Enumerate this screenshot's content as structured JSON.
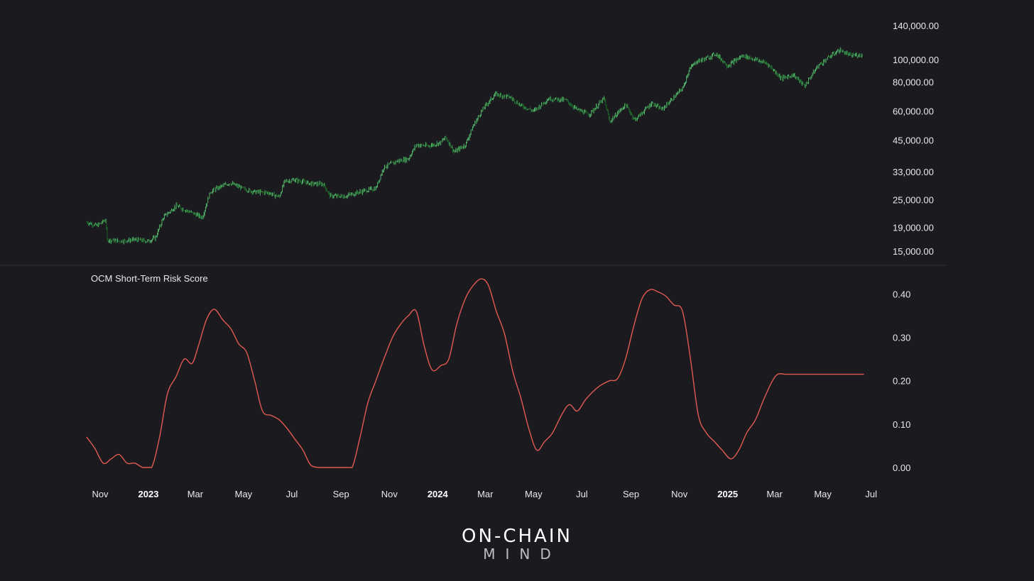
{
  "chart_data": [
    {
      "type": "candlestick",
      "scale": "log",
      "y_tick_labels": [
        "140,000.00",
        "100,000.00",
        "80,000.00",
        "60,000.00",
        "45,000.00",
        "33,000.00",
        "25,000.00",
        "19,000.00",
        "15,000.00"
      ],
      "y_ticks": [
        140000,
        100000,
        80000,
        60000,
        45000,
        33000,
        25000,
        19000,
        15000
      ],
      "ylim": [
        14000,
        140000
      ],
      "colors": {
        "up": "#5fd07a",
        "down": "#1f7a2e"
      },
      "series": [
        {
          "x": [
            "2022-10-15",
            "2022-10-28",
            "2022-11-08",
            "2022-11-10",
            "2022-11-25",
            "2022-12-15",
            "2023-01-01",
            "2023-01-10",
            "2023-01-20",
            "2023-02-05",
            "2023-02-20",
            "2023-03-10",
            "2023-03-20",
            "2023-04-01",
            "2023-04-14",
            "2023-05-01",
            "2023-05-15",
            "2023-06-01",
            "2023-06-15",
            "2023-06-22",
            "2023-07-05",
            "2023-07-25",
            "2023-08-10",
            "2023-08-18",
            "2023-09-05",
            "2023-09-25",
            "2023-10-15",
            "2023-10-25",
            "2023-11-10",
            "2023-11-25",
            "2023-12-05",
            "2023-12-20",
            "2024-01-05",
            "2024-01-11",
            "2024-01-22",
            "2024-02-05",
            "2024-02-15",
            "2024-02-28",
            "2024-03-14",
            "2024-04-01",
            "2024-04-15",
            "2024-05-01",
            "2024-05-20",
            "2024-06-10",
            "2024-06-25",
            "2024-07-10",
            "2024-07-29",
            "2024-08-05",
            "2024-08-25",
            "2024-09-06",
            "2024-09-27",
            "2024-10-10",
            "2024-10-29",
            "2024-11-06",
            "2024-11-13",
            "2024-11-22",
            "2024-12-05",
            "2024-12-17",
            "2025-01-01",
            "2025-01-20",
            "2025-02-01",
            "2025-02-20",
            "2025-03-10",
            "2025-03-25",
            "2025-04-08",
            "2025-04-25",
            "2025-05-10",
            "2025-05-22",
            "2025-06-05",
            "2025-06-20"
          ],
          "values": [
            20000,
            19300,
            20500,
            16800,
            16600,
            16800,
            16600,
            17200,
            21000,
            23500,
            22300,
            21000,
            27000,
            28300,
            29500,
            27800,
            27000,
            26800,
            25700,
            30000,
            30400,
            29300,
            29100,
            26000,
            25800,
            27000,
            28000,
            34500,
            36500,
            37500,
            43000,
            42500,
            44000,
            46500,
            40000,
            43000,
            52000,
            62000,
            71000,
            69000,
            63500,
            60000,
            68000,
            67000,
            61000,
            58000,
            68000,
            54000,
            64000,
            55000,
            65000,
            61000,
            71000,
            76000,
            90000,
            98000,
            101000,
            106000,
            94000,
            104000,
            101000,
            96000,
            83000,
            86000,
            77000,
            94000,
            103000,
            110000,
            104000,
            105000
          ]
        }
      ]
    },
    {
      "type": "line",
      "title": "OCM Short-Term Risk Score",
      "y_tick_labels": [
        "0.40",
        "0.30",
        "0.20",
        "0.10",
        "0.00"
      ],
      "y_ticks": [
        0.4,
        0.3,
        0.2,
        0.1,
        0.0
      ],
      "ylim": [
        0.0,
        0.44
      ],
      "line_color": "#e05a52",
      "series": [
        {
          "x": [
            "2022-10-15",
            "2022-10-25",
            "2022-11-05",
            "2022-11-15",
            "2022-11-25",
            "2022-12-05",
            "2022-12-15",
            "2022-12-25",
            "2023-01-05",
            "2023-01-15",
            "2023-01-25",
            "2023-02-05",
            "2023-02-15",
            "2023-02-25",
            "2023-03-05",
            "2023-03-15",
            "2023-03-25",
            "2023-04-05",
            "2023-04-15",
            "2023-04-25",
            "2023-05-05",
            "2023-05-15",
            "2023-05-25",
            "2023-06-05",
            "2023-06-15",
            "2023-06-25",
            "2023-07-05",
            "2023-07-15",
            "2023-07-25",
            "2023-08-05",
            "2023-08-15",
            "2023-08-25",
            "2023-09-05",
            "2023-09-15",
            "2023-09-25",
            "2023-10-05",
            "2023-10-15",
            "2023-10-25",
            "2023-11-05",
            "2023-11-15",
            "2023-11-25",
            "2023-12-05",
            "2023-12-15",
            "2023-12-25",
            "2024-01-05",
            "2024-01-15",
            "2024-01-25",
            "2024-02-05",
            "2024-02-15",
            "2024-02-25",
            "2024-03-05",
            "2024-03-15",
            "2024-03-25",
            "2024-04-05",
            "2024-04-15",
            "2024-04-25",
            "2024-05-05",
            "2024-05-15",
            "2024-05-25",
            "2024-06-05",
            "2024-06-15",
            "2024-06-25",
            "2024-07-05",
            "2024-07-15",
            "2024-07-25",
            "2024-08-05",
            "2024-08-15",
            "2024-08-25",
            "2024-09-05",
            "2024-09-15",
            "2024-09-25",
            "2024-10-05",
            "2024-10-15",
            "2024-10-25",
            "2024-11-05",
            "2024-11-15",
            "2024-11-25",
            "2024-12-05",
            "2024-12-15",
            "2024-12-25",
            "2025-01-05",
            "2025-01-15",
            "2025-01-25",
            "2025-02-05",
            "2025-02-15",
            "2025-02-25",
            "2025-03-05",
            "2025-03-15",
            "2025-03-25",
            "2025-04-05",
            "2025-04-15",
            "2025-04-25",
            "2025-05-05",
            "2025-05-15",
            "2025-05-25",
            "2025-06-05",
            "2025-06-15",
            "2025-06-22"
          ],
          "values": [
            0.07,
            0.045,
            0.01,
            0.02,
            0.03,
            0.01,
            0.01,
            0.0,
            0.0,
            0.07,
            0.17,
            0.21,
            0.25,
            0.24,
            0.28,
            0.34,
            0.365,
            0.34,
            0.32,
            0.285,
            0.265,
            0.2,
            0.13,
            0.12,
            0.11,
            0.09,
            0.065,
            0.04,
            0.005,
            0.0,
            0.0,
            0.0,
            0.0,
            0.0,
            0.07,
            0.15,
            0.2,
            0.25,
            0.3,
            0.33,
            0.35,
            0.36,
            0.28,
            0.225,
            0.235,
            0.25,
            0.33,
            0.39,
            0.42,
            0.435,
            0.42,
            0.36,
            0.31,
            0.22,
            0.16,
            0.09,
            0.04,
            0.06,
            0.08,
            0.12,
            0.145,
            0.13,
            0.155,
            0.175,
            0.19,
            0.2,
            0.205,
            0.25,
            0.33,
            0.39,
            0.41,
            0.405,
            0.395,
            0.375,
            0.36,
            0.25,
            0.12,
            0.08,
            0.06,
            0.04,
            0.02,
            0.04,
            0.08,
            0.11,
            0.155,
            0.195,
            0.215,
            0.215,
            0.215,
            0.215,
            0.215,
            0.215,
            0.215,
            0.215,
            0.215,
            0.215,
            0.215,
            0.215
          ]
        }
      ]
    }
  ],
  "x_axis": {
    "ticks": [
      {
        "label": "Nov",
        "date": "2022-11-01",
        "bold": false
      },
      {
        "label": "2023",
        "date": "2023-01-01",
        "bold": true
      },
      {
        "label": "Mar",
        "date": "2023-03-01",
        "bold": false
      },
      {
        "label": "May",
        "date": "2023-05-01",
        "bold": false
      },
      {
        "label": "Jul",
        "date": "2023-07-01",
        "bold": false
      },
      {
        "label": "Sep",
        "date": "2023-09-01",
        "bold": false
      },
      {
        "label": "Nov",
        "date": "2023-11-01",
        "bold": false
      },
      {
        "label": "2024",
        "date": "2024-01-01",
        "bold": true
      },
      {
        "label": "Mar",
        "date": "2024-03-01",
        "bold": false
      },
      {
        "label": "May",
        "date": "2024-05-01",
        "bold": false
      },
      {
        "label": "Jul",
        "date": "2024-07-01",
        "bold": false
      },
      {
        "label": "Sep",
        "date": "2024-09-01",
        "bold": false
      },
      {
        "label": "Nov",
        "date": "2024-11-01",
        "bold": false
      },
      {
        "label": "2025",
        "date": "2025-01-01",
        "bold": true
      },
      {
        "label": "Mar",
        "date": "2025-03-01",
        "bold": false
      },
      {
        "label": "May",
        "date": "2025-05-01",
        "bold": false
      },
      {
        "label": "Jul",
        "date": "2025-07-01",
        "bold": false
      }
    ]
  },
  "logo": {
    "line1": "ON-CHAIN",
    "line2": "MIND"
  }
}
